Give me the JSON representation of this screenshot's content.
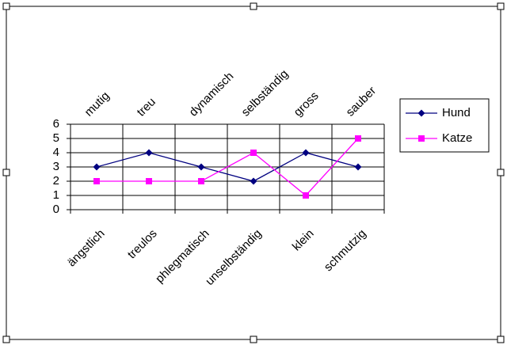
{
  "chart_data": {
    "type": "line",
    "categories": [
      "ängstlich",
      "treulos",
      "phlegmatisch",
      "unselbständig",
      "klein",
      "schmutzig"
    ],
    "secondary_categories": [
      "mutig",
      "treu",
      "dynamisch",
      "selbständig",
      "gross",
      "sauber"
    ],
    "series": [
      {
        "name": "Hund",
        "color": "#000080",
        "marker": "diamond",
        "values": [
          3,
          4,
          3,
          2,
          4,
          3
        ]
      },
      {
        "name": "Katze",
        "color": "#ff00ff",
        "marker": "square",
        "values": [
          2,
          2,
          2,
          4,
          1,
          5
        ]
      }
    ],
    "ylim": [
      0,
      6
    ],
    "yticks": [
      0,
      1,
      2,
      3,
      4,
      5,
      6
    ],
    "grid": true,
    "legend": "right"
  }
}
